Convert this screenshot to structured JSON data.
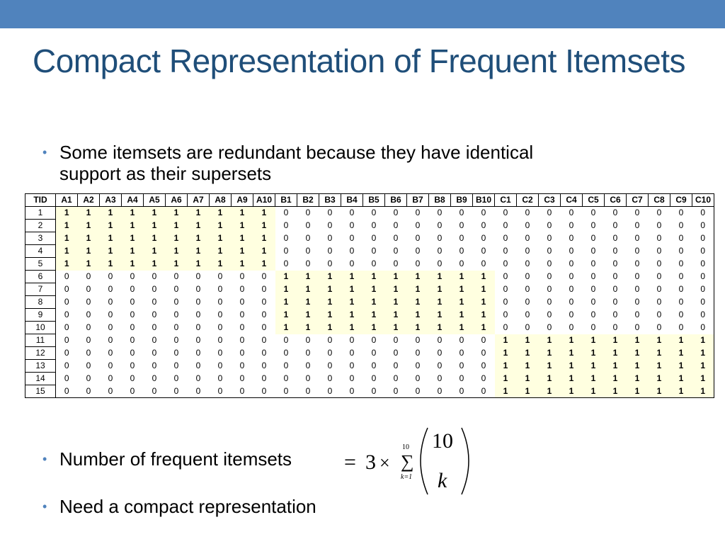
{
  "title": "Compact Representation of Frequent Itemsets",
  "bullets": {
    "b1_line1": "Some itemsets are redundant because they have identical",
    "b1_line2": "support as their supersets",
    "b2": "Number of frequent itemsets",
    "b3": "Need a compact representation"
  },
  "table": {
    "headers": [
      "TID",
      "A1",
      "A2",
      "A3",
      "A4",
      "A5",
      "A6",
      "A7",
      "A8",
      "A9",
      "A10",
      "B1",
      "B2",
      "B3",
      "B4",
      "B5",
      "B6",
      "B7",
      "B8",
      "B9",
      "B10",
      "C1",
      "C2",
      "C3",
      "C4",
      "C5",
      "C6",
      "C7",
      "C8",
      "C9",
      "C10"
    ],
    "rows": [
      {
        "tid": "1",
        "group": "A"
      },
      {
        "tid": "2",
        "group": "A"
      },
      {
        "tid": "3",
        "group": "A"
      },
      {
        "tid": "4",
        "group": "A"
      },
      {
        "tid": "5",
        "group": "A"
      },
      {
        "tid": "6",
        "group": "B"
      },
      {
        "tid": "7",
        "group": "B"
      },
      {
        "tid": "8",
        "group": "B"
      },
      {
        "tid": "9",
        "group": "B"
      },
      {
        "tid": "10",
        "group": "B"
      },
      {
        "tid": "11",
        "group": "C"
      },
      {
        "tid": "12",
        "group": "C"
      },
      {
        "tid": "13",
        "group": "C"
      },
      {
        "tid": "14",
        "group": "C"
      },
      {
        "tid": "15",
        "group": "C"
      }
    ]
  },
  "formula": {
    "equals": "=",
    "factor": "3",
    "times": "×",
    "sum_upper": "10",
    "sum_lower": "k=1",
    "binom_top": "10",
    "binom_bottom": "k"
  },
  "colors": {
    "topbar": "#5083bd",
    "title": "#1f4e79",
    "highlight": "#ffffe0"
  }
}
